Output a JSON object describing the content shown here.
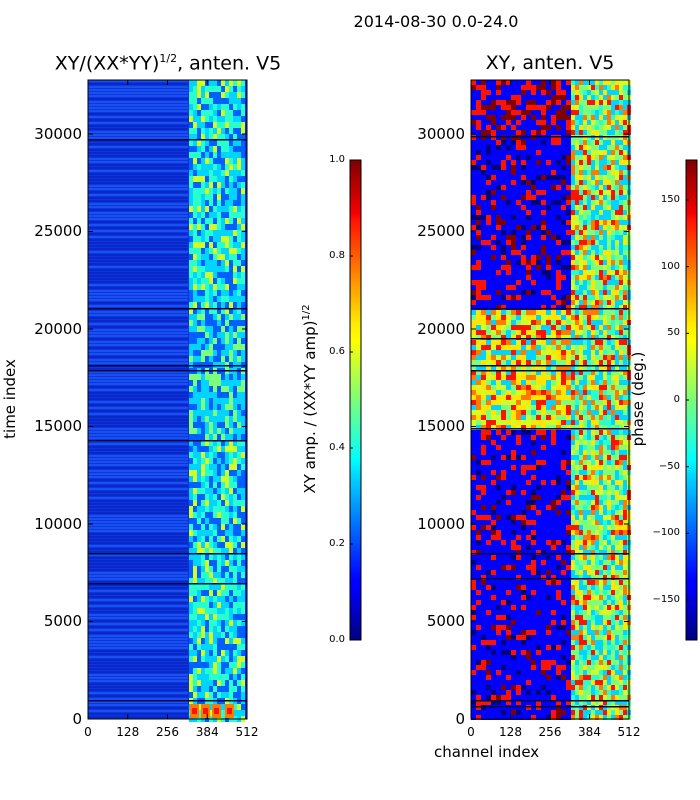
{
  "suptitle": "2014-08-30 0.0-24.0",
  "chart_data": [
    {
      "type": "heatmap",
      "title": "XY/(XX*YY)^{1/2}, anten. V5",
      "title_main": "XY/(XX*YY)",
      "title_sup": "1/2",
      "title_tail": ", anten. V5",
      "xlabel": "",
      "ylabel": "time index",
      "xlim": [
        0,
        512
      ],
      "ylim": [
        0,
        32768
      ],
      "xticks": [
        "0",
        "128",
        "256",
        "384",
        "512"
      ],
      "yticks": [
        "0",
        "5000",
        "10000",
        "15000",
        "20000",
        "25000",
        "30000"
      ],
      "colorbar": {
        "label": "XY amp. / (XX*YY amp)^{1/2}",
        "label_main": "XY amp. / (XX*YY amp)",
        "label_sup": "1/2",
        "range": [
          0.0,
          1.0
        ],
        "ticks": [
          "0.0",
          "0.2",
          "0.4",
          "0.6",
          "0.8",
          "1.0"
        ],
        "colormap": "jet"
      }
    },
    {
      "type": "heatmap",
      "title": "XY, anten. V5",
      "xlabel": "channel index",
      "ylabel": "",
      "xlim": [
        0,
        512
      ],
      "ylim": [
        0,
        32768
      ],
      "xticks": [
        "0",
        "128",
        "256",
        "384",
        "512"
      ],
      "yticks": [
        "0",
        "5000",
        "10000",
        "15000",
        "20000",
        "25000",
        "30000"
      ],
      "colorbar": {
        "label": "phase (deg.)",
        "range": [
          -180,
          180
        ],
        "ticks": [
          "−150",
          "−100",
          "−50",
          "0",
          "50",
          "100",
          "150"
        ],
        "tick_values": [
          -150,
          -100,
          -50,
          0,
          50,
          100,
          150
        ],
        "colormap": "jet"
      }
    }
  ]
}
